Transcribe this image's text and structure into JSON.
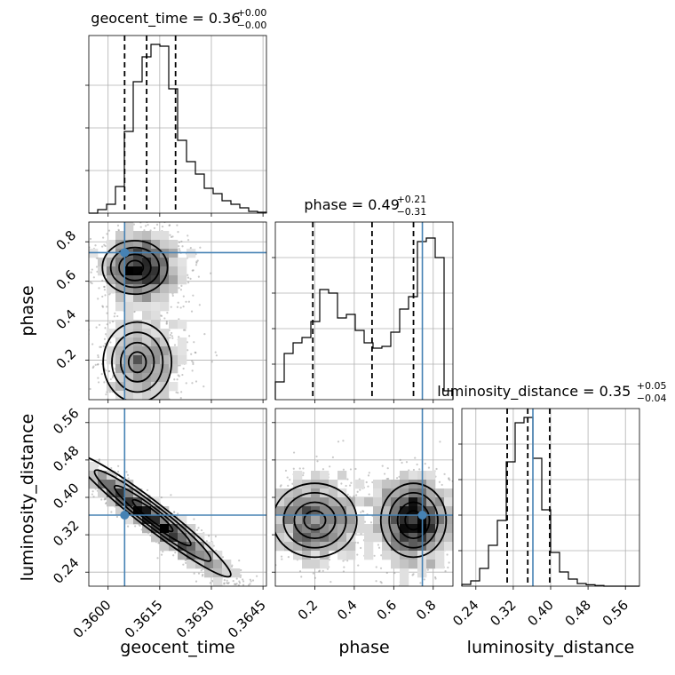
{
  "chart_data": {
    "type": "corner",
    "parameters": [
      {
        "name": "geocent_time",
        "axis_label": "geocent_time",
        "title_main": "geocent_time = 0.36",
        "title_sup": "+0.00",
        "title_sub": "−0.00",
        "range": [
          0.35944,
          0.3646
        ],
        "ticks": [
          {
            "v": 0.36,
            "label": "0.3600"
          },
          {
            "v": 0.3615,
            "label": "0.3615"
          },
          {
            "v": 0.363,
            "label": "0.3630"
          },
          {
            "v": 0.3645,
            "label": "0.3645"
          }
        ],
        "quantiles": [
          0.36048,
          0.36112,
          0.36196
        ],
        "truth": 0.36048,
        "hist_max": 1,
        "hist_ticks": [
          0.24,
          0.48,
          0.72
        ],
        "hist": [
          0.0,
          0.02,
          0.05,
          0.15,
          0.46,
          0.74,
          0.88,
          0.95,
          0.94,
          0.7,
          0.41,
          0.29,
          0.22,
          0.14,
          0.11,
          0.07,
          0.05,
          0.03,
          0.01,
          0.005
        ]
      },
      {
        "name": "phase",
        "axis_label": "phase",
        "title_main": "phase = 0.49",
        "title_sup": "+0.21",
        "title_sub": "−0.31",
        "range": [
          0.0,
          0.9
        ],
        "ticks": [
          {
            "v": 0.2,
            "label": "0.2"
          },
          {
            "v": 0.4,
            "label": "0.4"
          },
          {
            "v": 0.6,
            "label": "0.6"
          },
          {
            "v": 0.8,
            "label": "0.8"
          }
        ],
        "quantiles": [
          0.19,
          0.49,
          0.7
        ],
        "truth": 0.745,
        "hist_max": 1,
        "hist_ticks": [
          0.2,
          0.4,
          0.6,
          0.8
        ],
        "hist": [
          0.1,
          0.26,
          0.32,
          0.35,
          0.44,
          0.62,
          0.6,
          0.46,
          0.48,
          0.39,
          0.32,
          0.29,
          0.3,
          0.38,
          0.51,
          0.58,
          0.89,
          0.91,
          0.8,
          0.05
        ]
      },
      {
        "name": "luminosity_distance",
        "axis_label": "luminosity_distance",
        "title_main": "luminosity_distance = 0.35",
        "title_sup": "+0.05",
        "title_sub": "−0.04",
        "range": [
          0.21,
          0.59
        ],
        "ticks": [
          {
            "v": 0.24,
            "label": "0.24"
          },
          {
            "v": 0.32,
            "label": "0.32"
          },
          {
            "v": 0.4,
            "label": "0.40"
          },
          {
            "v": 0.48,
            "label": "0.48"
          },
          {
            "v": 0.56,
            "label": "0.56"
          }
        ],
        "quantiles": [
          0.307,
          0.351,
          0.398
        ],
        "truth": 0.362,
        "hist_max": 1,
        "hist_ticks": [
          0.2,
          0.4,
          0.6,
          0.8
        ],
        "hist": [
          0.01,
          0.03,
          0.1,
          0.23,
          0.37,
          0.7,
          0.92,
          0.95,
          0.72,
          0.43,
          0.19,
          0.08,
          0.04,
          0.015,
          0.008,
          0.004,
          0.0,
          0.0,
          0.0,
          0.0
        ]
      }
    ],
    "truth_color": "#4682b4",
    "hist_color": "#000000",
    "grid": true,
    "pairs": [
      {
        "x": 0,
        "y": 1,
        "modes": [
          {
            "cx": 0.36078,
            "cy": 0.67,
            "sx": 0.0004,
            "sy": 0.06
          },
          {
            "cx": 0.36085,
            "cy": 0.19,
            "sx": 0.00042,
            "sy": 0.09
          }
        ],
        "weights": [
          0.6,
          0.4
        ]
      },
      {
        "x": 0,
        "y": 2,
        "modes": [
          {
            "cx": 0.36112,
            "cy": 0.351,
            "sx": 0.0007,
            "sy": 0.04
          }
        ],
        "weights": [
          1.0
        ],
        "corr": -0.97
      },
      {
        "x": 1,
        "y": 2,
        "modes": [
          {
            "cx": 0.2,
            "cy": 0.351,
            "sx": 0.09,
            "sy": 0.035
          },
          {
            "cx": 0.7,
            "cy": 0.351,
            "sx": 0.07,
            "sy": 0.035
          }
        ],
        "weights": [
          0.42,
          0.58
        ]
      }
    ]
  }
}
